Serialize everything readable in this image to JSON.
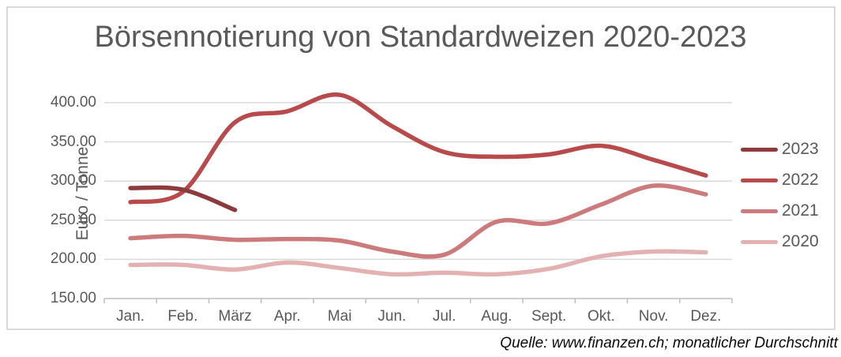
{
  "page": {
    "source_note": "Quelle: www.finanzen.ch; monatlicher Durchschnitt"
  },
  "chart_data": {
    "type": "line",
    "title": "Börsennotierung von Standardweizen 2020-2023",
    "xlabel": "",
    "ylabel": "Euro / Tonne",
    "categories": [
      "Jan.",
      "Feb.",
      "März",
      "Apr.",
      "Mai",
      "Jun.",
      "Jul.",
      "Aug.",
      "Sept.",
      "Okt.",
      "Nov.",
      "Dez."
    ],
    "yticks": [
      150,
      200,
      250,
      300,
      350,
      400
    ],
    "ytick_labels": [
      "150.00",
      "200.00",
      "250.00",
      "300.00",
      "350.00",
      "400.00"
    ],
    "ylim": [
      150,
      420
    ],
    "grid": true,
    "legend_position": "right",
    "smooth_lines": true,
    "axis_color": "#bfbfbf",
    "gridline_color": "#d9d9d9",
    "series": [
      {
        "name": "2023",
        "color": "#8d3a3c",
        "values": [
          291,
          289,
          263,
          null,
          null,
          null,
          null,
          null,
          null,
          null,
          null,
          null
        ]
      },
      {
        "name": "2022",
        "color": "#b84a4b",
        "values": [
          273,
          286,
          375,
          389,
          410,
          370,
          337,
          331,
          334,
          345,
          327,
          307
        ]
      },
      {
        "name": "2021",
        "color": "#cc7a7b",
        "values": [
          227,
          230,
          225,
          226,
          224,
          210,
          206,
          248,
          246,
          270,
          294,
          283
        ]
      },
      {
        "name": "2020",
        "color": "#e3b1b1",
        "values": [
          193,
          193,
          187,
          196,
          189,
          181,
          183,
          181,
          188,
          204,
          210,
          209
        ]
      }
    ]
  }
}
